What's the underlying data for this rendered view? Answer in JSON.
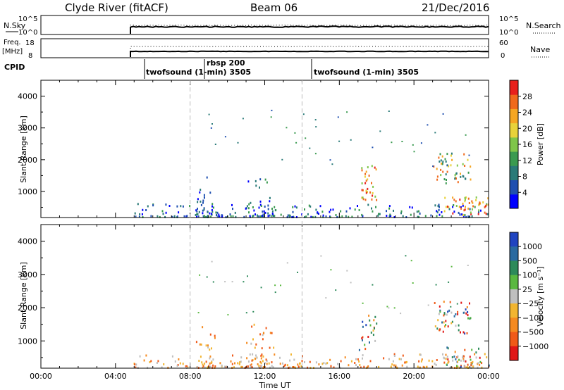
{
  "header": {
    "station": "Clyde River (fitACF)",
    "beam": "Beam 06",
    "date": "21/Dec/2016"
  },
  "summary": {
    "nsky_label": "N.Sky",
    "nsky_ticks": [
      "10^5",
      "10^0"
    ],
    "nsearch_label": "N.Search",
    "nsearch_ticks": [
      "10^5",
      "10^0"
    ],
    "freq_label_1": "Freq.",
    "freq_label_2": "[MHz]",
    "freq_ticks": [
      "18",
      "8"
    ],
    "nave_label": "Nave",
    "nave_ticks": [
      "60",
      "0"
    ],
    "cpid_label": "CPID",
    "cpid_segments": [
      {
        "name": "twofsound (1-min) 3505",
        "start": "04:48"
      },
      {
        "name": "rbsp 200",
        "start": "08:00"
      },
      {
        "name": "twofsound (1-min) 3505",
        "start": "14:00"
      }
    ]
  },
  "chart_data": [
    {
      "type": "heatmap",
      "name": "power-panel",
      "ylabel": "Slant Range [km]",
      "xlabel": "",
      "x_range_hours": [
        0,
        24
      ],
      "ylim": [
        180,
        4500
      ],
      "ytick_labels": [
        "1000",
        "2000",
        "3000",
        "4000"
      ],
      "yticks": [
        1000,
        2000,
        3000,
        4000
      ],
      "colorbar": {
        "label": "Power [dB]",
        "ticks": [
          "4",
          "8",
          "12",
          "16",
          "20",
          "24",
          "28"
        ],
        "tick_values": [
          4,
          8,
          12,
          16,
          20,
          24,
          28
        ],
        "range": [
          0,
          32
        ],
        "colors": [
          "#0000ff",
          "#1f4fb0",
          "#2a7a78",
          "#3a9a50",
          "#7fc64a",
          "#e8d23a",
          "#f5a623",
          "#f06a1c",
          "#e8201c"
        ]
      },
      "scatter_regions": [
        {
          "t_start": 4.9,
          "t_end": 24.0,
          "r_low": 180,
          "r_high": 600,
          "level": "low"
        },
        {
          "t_start": 8.3,
          "t_end": 9.3,
          "r_low": 180,
          "r_high": 1500,
          "level": "low"
        },
        {
          "t_start": 11.0,
          "t_end": 12.5,
          "r_low": 200,
          "r_high": 1500,
          "level": "low"
        },
        {
          "t_start": 17.0,
          "t_end": 18.0,
          "r_low": 700,
          "r_high": 1800,
          "level": "high"
        },
        {
          "t_start": 21.0,
          "t_end": 23.0,
          "r_low": 1200,
          "r_high": 2200,
          "level": "mid"
        },
        {
          "t_start": 21.5,
          "t_end": 24.0,
          "r_low": 180,
          "r_high": 800,
          "level": "high"
        }
      ]
    },
    {
      "type": "heatmap",
      "name": "velocity-panel",
      "ylabel": "Slant Range [km]",
      "xlabel": "Time UT",
      "x_range_hours": [
        0,
        24
      ],
      "xtick_labels": [
        "00:00",
        "04:00",
        "08:00",
        "12:00",
        "16:00",
        "20:00",
        "00:00"
      ],
      "xticks": [
        0,
        4,
        8,
        12,
        16,
        20,
        24
      ],
      "ylim": [
        180,
        4500
      ],
      "ytick_labels": [
        "1000",
        "2000",
        "3000",
        "4000"
      ],
      "yticks": [
        1000,
        2000,
        3000,
        4000
      ],
      "colorbar": {
        "label": "Velocity [m s⁻¹]",
        "ticks": [
          "1000",
          "500",
          "100",
          "25",
          "−25",
          "−100",
          "−500",
          "−1000"
        ],
        "colors": [
          "#2044c0",
          "#2a6aa0",
          "#2d8a5a",
          "#5ab840",
          "#bfbfbf",
          "#f2b530",
          "#f58a20",
          "#f05a18",
          "#e01818"
        ]
      }
    }
  ],
  "dashed_marker_hours": [
    8.0,
    14.0
  ]
}
